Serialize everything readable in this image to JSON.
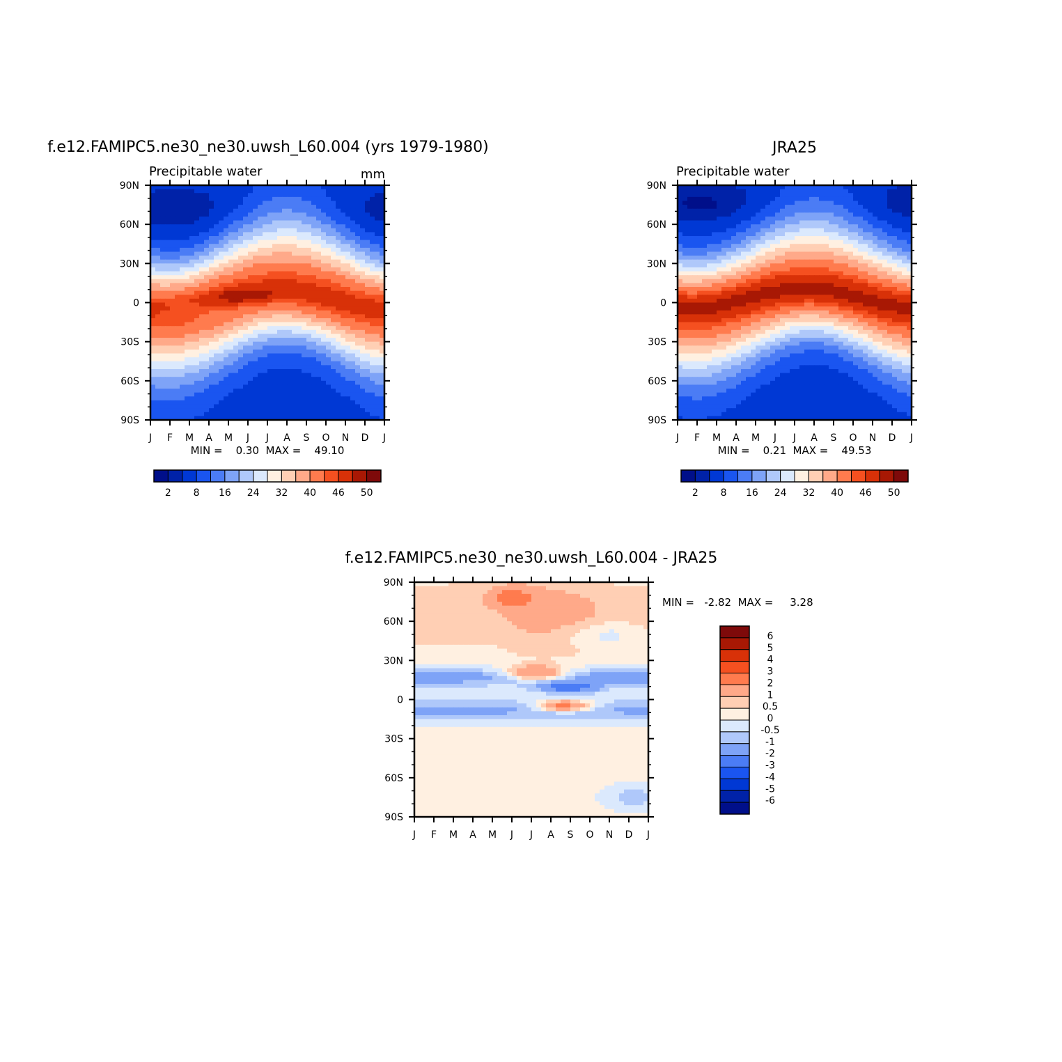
{
  "chart_data": [
    {
      "type": "heatmap",
      "title": "f.e12.FAMIPC5.ne30_ne30.uwsh_L60.004 (yrs 1979-1980)",
      "subtitle_left": "Precipitable water",
      "subtitle_right": "mm",
      "xlabel": "",
      "ylabel": "",
      "x_ticks": [
        "J",
        "F",
        "M",
        "A",
        "M",
        "J",
        "J",
        "A",
        "S",
        "O",
        "N",
        "D",
        "J"
      ],
      "y_ticks": [
        "90N",
        "60N",
        "30N",
        "0",
        "30S",
        "60S",
        "90S"
      ],
      "xlim": [
        0,
        12
      ],
      "ylim": [
        -90,
        90
      ],
      "stats_text": "MIN =    0.30  MAX =    49.10",
      "min": 0.3,
      "max": 49.1,
      "field": "model",
      "colorbar": {
        "orientation": "horizontal",
        "levels": [
          2,
          4,
          8,
          12,
          16,
          20,
          24,
          28,
          32,
          36,
          40,
          44,
          46,
          48,
          50
        ],
        "tick_labels": [
          "2",
          "8",
          "16",
          "24",
          "32",
          "40",
          "46",
          "50"
        ],
        "colors": [
          "#000f8a",
          "#0022a8",
          "#0038d4",
          "#1a55f0",
          "#4b7cf5",
          "#7ea3f7",
          "#afc8fa",
          "#dbe9fd",
          "#fff0e1",
          "#ffcfb4",
          "#ffa989",
          "#ff7b4e",
          "#f55020",
          "#d83108",
          "#a81804",
          "#7e0a0a"
        ]
      }
    },
    {
      "type": "heatmap",
      "title": "JRA25",
      "subtitle_left": "Precipitable water",
      "subtitle_right": "",
      "xlabel": "",
      "ylabel": "",
      "x_ticks": [
        "J",
        "F",
        "M",
        "A",
        "M",
        "J",
        "J",
        "A",
        "S",
        "O",
        "N",
        "D",
        "J"
      ],
      "y_ticks": [
        "90N",
        "60N",
        "30N",
        "0",
        "30S",
        "60S",
        "90S"
      ],
      "xlim": [
        0,
        12
      ],
      "ylim": [
        -90,
        90
      ],
      "stats_text": "MIN =    0.21  MAX =    49.53",
      "min": 0.21,
      "max": 49.53,
      "field": "obs",
      "colorbar": {
        "orientation": "horizontal",
        "levels": [
          2,
          4,
          8,
          12,
          16,
          20,
          24,
          28,
          32,
          36,
          40,
          44,
          46,
          48,
          50
        ],
        "tick_labels": [
          "2",
          "8",
          "16",
          "24",
          "32",
          "40",
          "46",
          "50"
        ],
        "colors": [
          "#000f8a",
          "#0022a8",
          "#0038d4",
          "#1a55f0",
          "#4b7cf5",
          "#7ea3f7",
          "#afc8fa",
          "#dbe9fd",
          "#fff0e1",
          "#ffcfb4",
          "#ffa989",
          "#ff7b4e",
          "#f55020",
          "#d83108",
          "#a81804",
          "#7e0a0a"
        ]
      }
    },
    {
      "type": "heatmap",
      "title": "f.e12.FAMIPC5.ne30_ne30.uwsh_L60.004 - JRA25",
      "subtitle_left": "",
      "subtitle_right": "",
      "xlabel": "",
      "ylabel": "",
      "x_ticks": [
        "J",
        "F",
        "M",
        "A",
        "M",
        "J",
        "J",
        "A",
        "S",
        "O",
        "N",
        "D",
        "J"
      ],
      "y_ticks": [
        "90N",
        "60N",
        "30N",
        "0",
        "30S",
        "60S",
        "90S"
      ],
      "xlim": [
        0,
        12
      ],
      "ylim": [
        -90,
        90
      ],
      "stats_text": "MIN =   -2.82  MAX =     3.28",
      "min": -2.82,
      "max": 3.28,
      "field": "diff",
      "colorbar": {
        "orientation": "vertical",
        "levels": [
          -6,
          -5,
          -4,
          -3,
          -2,
          -1,
          -0.5,
          0,
          0.5,
          1,
          2,
          3,
          4,
          5,
          6
        ],
        "tick_labels": [
          "6",
          "5",
          "4",
          "3",
          "2",
          "1",
          "0.5",
          "0",
          "-0.5",
          "-1",
          "-2",
          "-3",
          "-4",
          "-5",
          "-6"
        ],
        "colors": [
          "#000f8a",
          "#0022a8",
          "#0038d4",
          "#1a55f0",
          "#4b7cf5",
          "#7ea3f7",
          "#afc8fa",
          "#dbe9fd",
          "#fff0e1",
          "#ffcfb4",
          "#ffa989",
          "#ff7b4e",
          "#f55020",
          "#d83108",
          "#a81804",
          "#7e0a0a"
        ]
      }
    }
  ]
}
